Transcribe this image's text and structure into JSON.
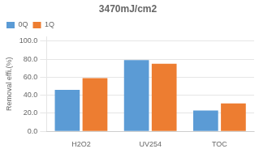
{
  "chart_data": {
    "type": "bar",
    "title": "3470mJ/cm2",
    "categories": [
      "H2O2",
      "UV254",
      "TOC"
    ],
    "series": [
      {
        "name": "0Q",
        "color": "#5B9BD5",
        "values": [
          46.0,
          79.0,
          23.0
        ]
      },
      {
        "name": "1Q",
        "color": "#ED7D31",
        "values": [
          59.0,
          75.0,
          31.0
        ]
      }
    ],
    "ylabel": "Removal effi.(%)",
    "ylim": [
      0,
      105
    ],
    "yticks": [
      {
        "value": 0,
        "label": "0.0"
      },
      {
        "value": 20,
        "label": "20.0"
      },
      {
        "value": 40,
        "label": "40.0"
      },
      {
        "value": 60,
        "label": "60.0"
      },
      {
        "value": 80,
        "label": "80.0"
      },
      {
        "value": 100,
        "label": "100.0"
      }
    ],
    "grid": true,
    "legend": "upper left"
  }
}
